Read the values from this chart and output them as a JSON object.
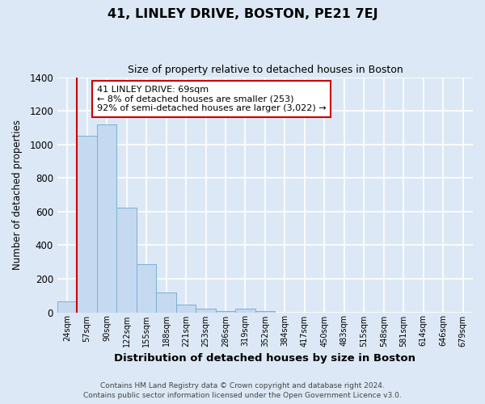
{
  "title": "41, LINLEY DRIVE, BOSTON, PE21 7EJ",
  "subtitle": "Size of property relative to detached houses in Boston",
  "xlabel": "Distribution of detached houses by size in Boston",
  "ylabel": "Number of detached properties",
  "bin_labels": [
    "24sqm",
    "57sqm",
    "90sqm",
    "122sqm",
    "155sqm",
    "188sqm",
    "221sqm",
    "253sqm",
    "286sqm",
    "319sqm",
    "352sqm",
    "384sqm",
    "417sqm",
    "450sqm",
    "483sqm",
    "515sqm",
    "548sqm",
    "581sqm",
    "614sqm",
    "646sqm",
    "679sqm"
  ],
  "bar_values": [
    65,
    1050,
    1120,
    625,
    285,
    120,
    45,
    20,
    5,
    20,
    5,
    0,
    0,
    0,
    0,
    0,
    0,
    0,
    0,
    0,
    0
  ],
  "bar_color": "#c5d9f0",
  "bar_edge_color": "#7bafd4",
  "annotation_title": "41 LINLEY DRIVE: 69sqm",
  "annotation_line1": "← 8% of detached houses are smaller (253)",
  "annotation_line2": "92% of semi-detached houses are larger (3,022) →",
  "annotation_box_color": "#ffffff",
  "annotation_box_edge": "#cc0000",
  "redline_color": "#cc0000",
  "footer1": "Contains HM Land Registry data © Crown copyright and database right 2024.",
  "footer2": "Contains public sector information licensed under the Open Government Licence v3.0.",
  "ylim": [
    0,
    1400
  ],
  "yticks": [
    0,
    200,
    400,
    600,
    800,
    1000,
    1200,
    1400
  ],
  "fig_bg": "#dce8f5",
  "plot_bg": "#dce8f5",
  "grid_color": "#ffffff"
}
